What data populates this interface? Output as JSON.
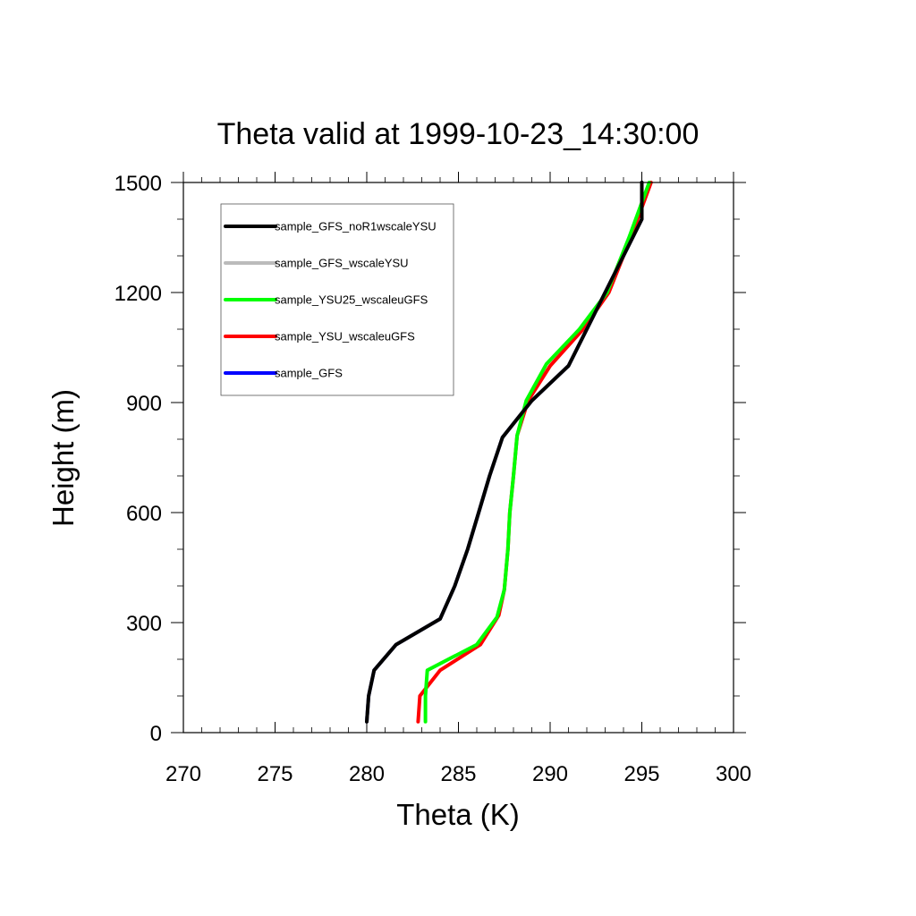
{
  "chart_data": {
    "type": "line",
    "title": "Theta valid at 1999-10-23_14:30:00",
    "xlabel": "Theta (K)",
    "ylabel": "Height (m)",
    "xlim": [
      270,
      300
    ],
    "ylim": [
      0,
      1500
    ],
    "xticks": [
      270,
      275,
      280,
      285,
      290,
      295,
      300
    ],
    "yticks": [
      0,
      300,
      600,
      900,
      1200,
      1500
    ],
    "grid": false,
    "legend_position": "top-left",
    "series": [
      {
        "name": "sample_GFS_noR1wscaleYSU",
        "color": "#000000",
        "points": [
          [
            280.0,
            30
          ],
          [
            280.1,
            100
          ],
          [
            280.4,
            170
          ],
          [
            281.6,
            240
          ],
          [
            284.0,
            310
          ],
          [
            284.8,
            400
          ],
          [
            285.5,
            500
          ],
          [
            286.1,
            600
          ],
          [
            286.7,
            700
          ],
          [
            287.4,
            805
          ],
          [
            289.0,
            905
          ],
          [
            291.0,
            1000
          ],
          [
            292.0,
            1100
          ],
          [
            293.0,
            1200
          ],
          [
            294.0,
            1300
          ],
          [
            295.0,
            1400
          ],
          [
            295.0,
            1500
          ]
        ]
      },
      {
        "name": "sample_GFS_wscaleYSU",
        "color": "#bbbbbb",
        "points": [
          [
            280.0,
            30
          ],
          [
            280.1,
            100
          ],
          [
            280.4,
            170
          ],
          [
            281.6,
            240
          ],
          [
            284.0,
            310
          ],
          [
            284.8,
            400
          ],
          [
            285.5,
            500
          ],
          [
            286.1,
            600
          ],
          [
            286.7,
            700
          ],
          [
            287.4,
            805
          ],
          [
            289.0,
            905
          ],
          [
            291.0,
            1000
          ],
          [
            292.0,
            1100
          ],
          [
            293.0,
            1200
          ],
          [
            294.0,
            1300
          ],
          [
            295.0,
            1400
          ],
          [
            295.0,
            1500
          ]
        ]
      },
      {
        "name": "sample_YSU25_wscaleuGFS",
        "color": "#00ff00",
        "points": [
          [
            283.2,
            30
          ],
          [
            283.2,
            100
          ],
          [
            283.3,
            170
          ],
          [
            286.0,
            240
          ],
          [
            287.1,
            315
          ],
          [
            287.5,
            390
          ],
          [
            287.7,
            500
          ],
          [
            287.8,
            600
          ],
          [
            288.0,
            700
          ],
          [
            288.2,
            810
          ],
          [
            288.7,
            905
          ],
          [
            289.8,
            1005
          ],
          [
            291.6,
            1100
          ],
          [
            293.1,
            1200
          ],
          [
            294.3,
            1350
          ],
          [
            295.4,
            1500
          ]
        ]
      },
      {
        "name": "sample_YSU_wscaleuGFS",
        "color": "#ff0000",
        "points": [
          [
            282.8,
            30
          ],
          [
            282.9,
            100
          ],
          [
            284.0,
            170
          ],
          [
            286.2,
            240
          ],
          [
            287.2,
            320
          ],
          [
            287.5,
            390
          ],
          [
            287.7,
            500
          ],
          [
            287.8,
            600
          ],
          [
            288.0,
            700
          ],
          [
            288.2,
            810
          ],
          [
            288.8,
            905
          ],
          [
            290.0,
            1000
          ],
          [
            291.8,
            1100
          ],
          [
            293.2,
            1200
          ],
          [
            294.4,
            1350
          ],
          [
            295.5,
            1500
          ]
        ]
      },
      {
        "name": "sample_GFS",
        "color": "#0000ff",
        "points": [
          [
            280.0,
            30
          ],
          [
            280.1,
            100
          ],
          [
            280.4,
            170
          ],
          [
            281.6,
            240
          ],
          [
            284.0,
            310
          ],
          [
            284.8,
            400
          ],
          [
            285.5,
            500
          ],
          [
            286.1,
            600
          ],
          [
            286.7,
            700
          ],
          [
            287.4,
            805
          ],
          [
            289.0,
            905
          ],
          [
            291.0,
            1000
          ],
          [
            292.0,
            1100
          ],
          [
            293.0,
            1200
          ],
          [
            294.0,
            1300
          ],
          [
            295.0,
            1400
          ],
          [
            295.0,
            1500
          ]
        ]
      }
    ],
    "legend_order": [
      0,
      1,
      2,
      3,
      4
    ],
    "draw_order": [
      4,
      3,
      2,
      1,
      0
    ]
  }
}
